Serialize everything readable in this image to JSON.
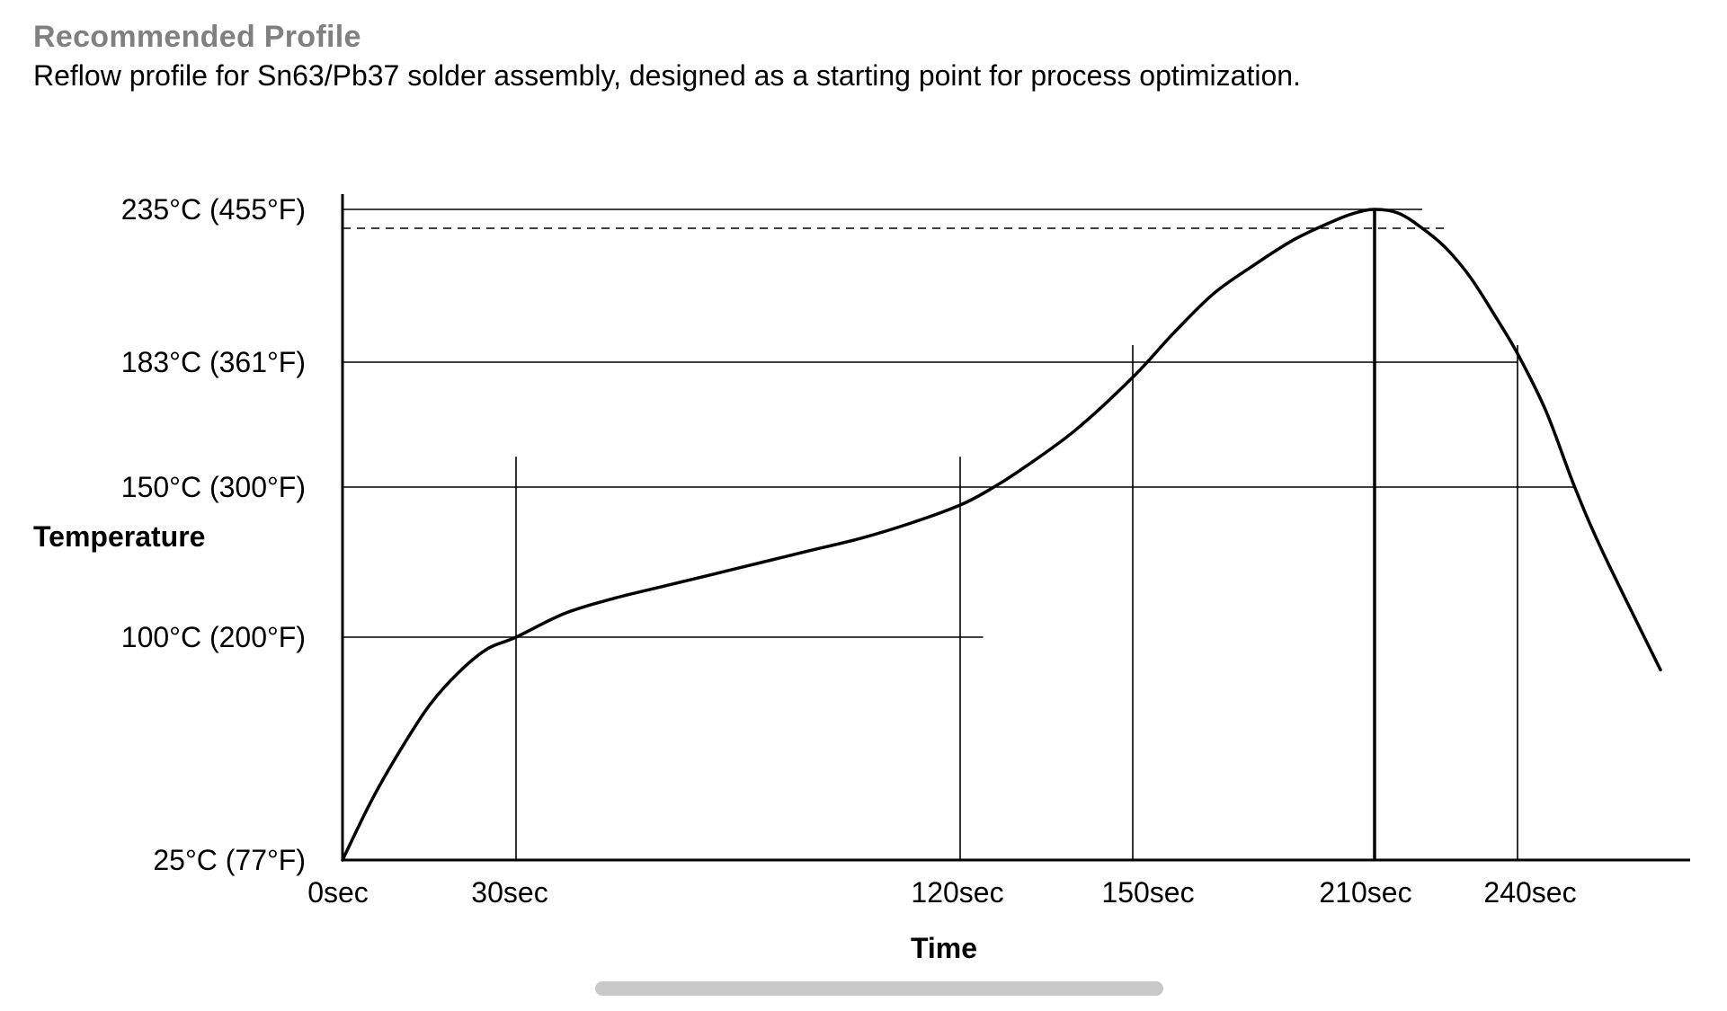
{
  "header": {
    "title": "Recommended Profile",
    "description": "Reflow profile for Sn63/Pb37 solder assembly, designed as a starting point for process optimization."
  },
  "chart_data": {
    "type": "line",
    "xlabel": "Time",
    "ylabel": "Temperature",
    "x_ticks": [
      {
        "value": 0,
        "label": "0sec"
      },
      {
        "value": 30,
        "label": "30sec"
      },
      {
        "value": 120,
        "label": "120sec"
      },
      {
        "value": 150,
        "label": "150sec"
      },
      {
        "value": 210,
        "label": "210sec"
      },
      {
        "value": 240,
        "label": "240sec"
      }
    ],
    "y_ticks": [
      {
        "value": 25,
        "label": "25°C (77°F)"
      },
      {
        "value": 100,
        "label": "100°C (200°F)"
      },
      {
        "value": 150,
        "label": "150°C (300°F)"
      },
      {
        "value": 183,
        "label": "183°C (361°F)"
      },
      {
        "value": 235,
        "label": "235°C (455°F)"
      }
    ],
    "xlim": [
      0,
      265
    ],
    "ylim": [
      25,
      235
    ],
    "guide_lines": [
      {
        "kind": "h",
        "y": 235,
        "x_end": 220,
        "style": "solid"
      },
      {
        "kind": "h",
        "y": 230,
        "x_end": 225,
        "style": "dashed"
      },
      {
        "kind": "h",
        "y": 183,
        "x_end": 240,
        "style": "solid"
      },
      {
        "kind": "h",
        "y": 150,
        "x_end": 250,
        "style": "solid"
      },
      {
        "kind": "h",
        "y": 100,
        "x_end": 124,
        "style": "solid"
      },
      {
        "kind": "v",
        "x": 30,
        "y_end": 158,
        "style": "solid"
      },
      {
        "kind": "v",
        "x": 120,
        "y_end": 158,
        "style": "solid"
      },
      {
        "kind": "v",
        "x": 150,
        "y_end": 189,
        "style": "solid"
      },
      {
        "kind": "v",
        "x": 210,
        "y_end": 240,
        "style": "bold"
      },
      {
        "kind": "v",
        "x": 240,
        "y_end": 189,
        "style": "solid"
      }
    ],
    "series": [
      {
        "x": [
          0,
          5,
          10,
          15,
          20,
          25,
          30,
          40,
          50,
          60,
          70,
          80,
          90,
          100,
          110,
          120,
          125,
          130,
          140,
          150,
          160,
          170,
          180,
          190,
          200,
          205,
          210,
          215,
          220,
          225,
          230,
          235,
          240,
          245,
          250,
          255,
          265
        ],
        "values": [
          25,
          45,
          62,
          77,
          88,
          96,
          100,
          108,
          113,
          117,
          121,
          125,
          129,
          133,
          138,
          144,
          149,
          154,
          165,
          179,
          193,
          207,
          217,
          226,
          232,
          234,
          235,
          234,
          230,
          223,
          213,
          200,
          186,
          170,
          150,
          128,
          89
        ]
      }
    ]
  }
}
